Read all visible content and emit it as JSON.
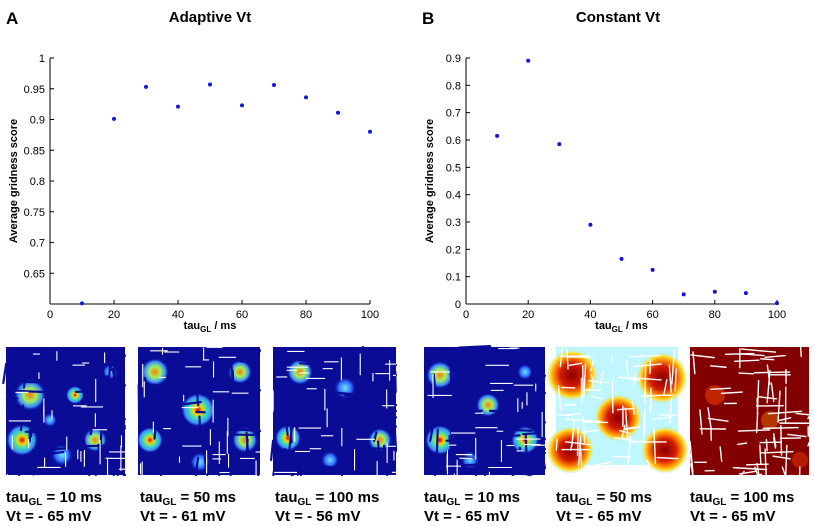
{
  "panels": [
    {
      "letter": "A",
      "title": "Adaptive Vt",
      "chart_data": {
        "type": "scatter",
        "title": "Adaptive Vt",
        "xlabel": "tau",
        "xlabel_sub": "GL",
        "xlabel_suffix": " / ms",
        "ylabel": "Average gridness score",
        "xlim": [
          0,
          100
        ],
        "ylim": [
          0.6,
          1.0
        ],
        "xticks": [
          0,
          20,
          40,
          60,
          80,
          100
        ],
        "yticks": [
          0.65,
          0.7,
          0.75,
          0.8,
          0.85,
          0.9,
          0.95,
          1
        ],
        "ytick_labels": [
          "0.65",
          "0.7",
          "0.75",
          "0.8",
          "0.85",
          "0.9",
          "0.95",
          "1"
        ],
        "color": "#1414dc",
        "x": [
          10,
          20,
          30,
          40,
          50,
          60,
          70,
          80,
          90,
          100
        ],
        "y": [
          0.601,
          0.901,
          0.953,
          0.921,
          0.957,
          0.923,
          0.956,
          0.936,
          0.911,
          0.88
        ]
      },
      "heatmaps": [
        {
          "line1_prefix": "tau",
          "line1_sub": "GL",
          "line1_suffix": " = 10 ms",
          "line2": "Vt = - 65 mV"
        },
        {
          "line1_prefix": "tau",
          "line1_sub": "GL",
          "line1_suffix": " = 50 ms",
          "line2": "Vt = - 61 mV"
        },
        {
          "line1_prefix": "tau",
          "line1_sub": "GL",
          "line1_suffix": " = 100 ms",
          "line2": "Vt = - 56 mV"
        }
      ]
    },
    {
      "letter": "B",
      "title": "Constant Vt",
      "chart_data": {
        "type": "scatter",
        "title": "Constant Vt",
        "xlabel": "tau",
        "xlabel_sub": "GL",
        "xlabel_suffix": " / ms",
        "ylabel": "Average gridness score",
        "xlim": [
          0,
          100
        ],
        "ylim": [
          0,
          0.9
        ],
        "xticks": [
          0,
          20,
          40,
          60,
          80,
          100
        ],
        "yticks": [
          0,
          0.1,
          0.2,
          0.3,
          0.4,
          0.5,
          0.6,
          0.7,
          0.8,
          0.9
        ],
        "ytick_labels": [
          "0",
          "0.1",
          "0.2",
          "0.3",
          "0.4",
          "0.5",
          "0.6",
          "0.7",
          "0.8",
          "0.9"
        ],
        "color": "#1414dc",
        "x": [
          10,
          20,
          30,
          40,
          50,
          60,
          70,
          80,
          90,
          100
        ],
        "y": [
          0.615,
          0.89,
          0.585,
          0.29,
          0.165,
          0.125,
          0.035,
          0.045,
          0.04,
          0.003
        ]
      },
      "heatmaps": [
        {
          "line1_prefix": "tau",
          "line1_sub": "GL",
          "line1_suffix": " = 10 ms",
          "line2": "Vt = - 65 mV"
        },
        {
          "line1_prefix": "tau",
          "line1_sub": "GL",
          "line1_suffix": " = 50 ms",
          "line2": "Vt = - 65 mV"
        },
        {
          "line1_prefix": "tau",
          "line1_sub": "GL",
          "line1_suffix": " = 100 ms",
          "line2": "Vt = - 65 mV"
        }
      ]
    }
  ]
}
